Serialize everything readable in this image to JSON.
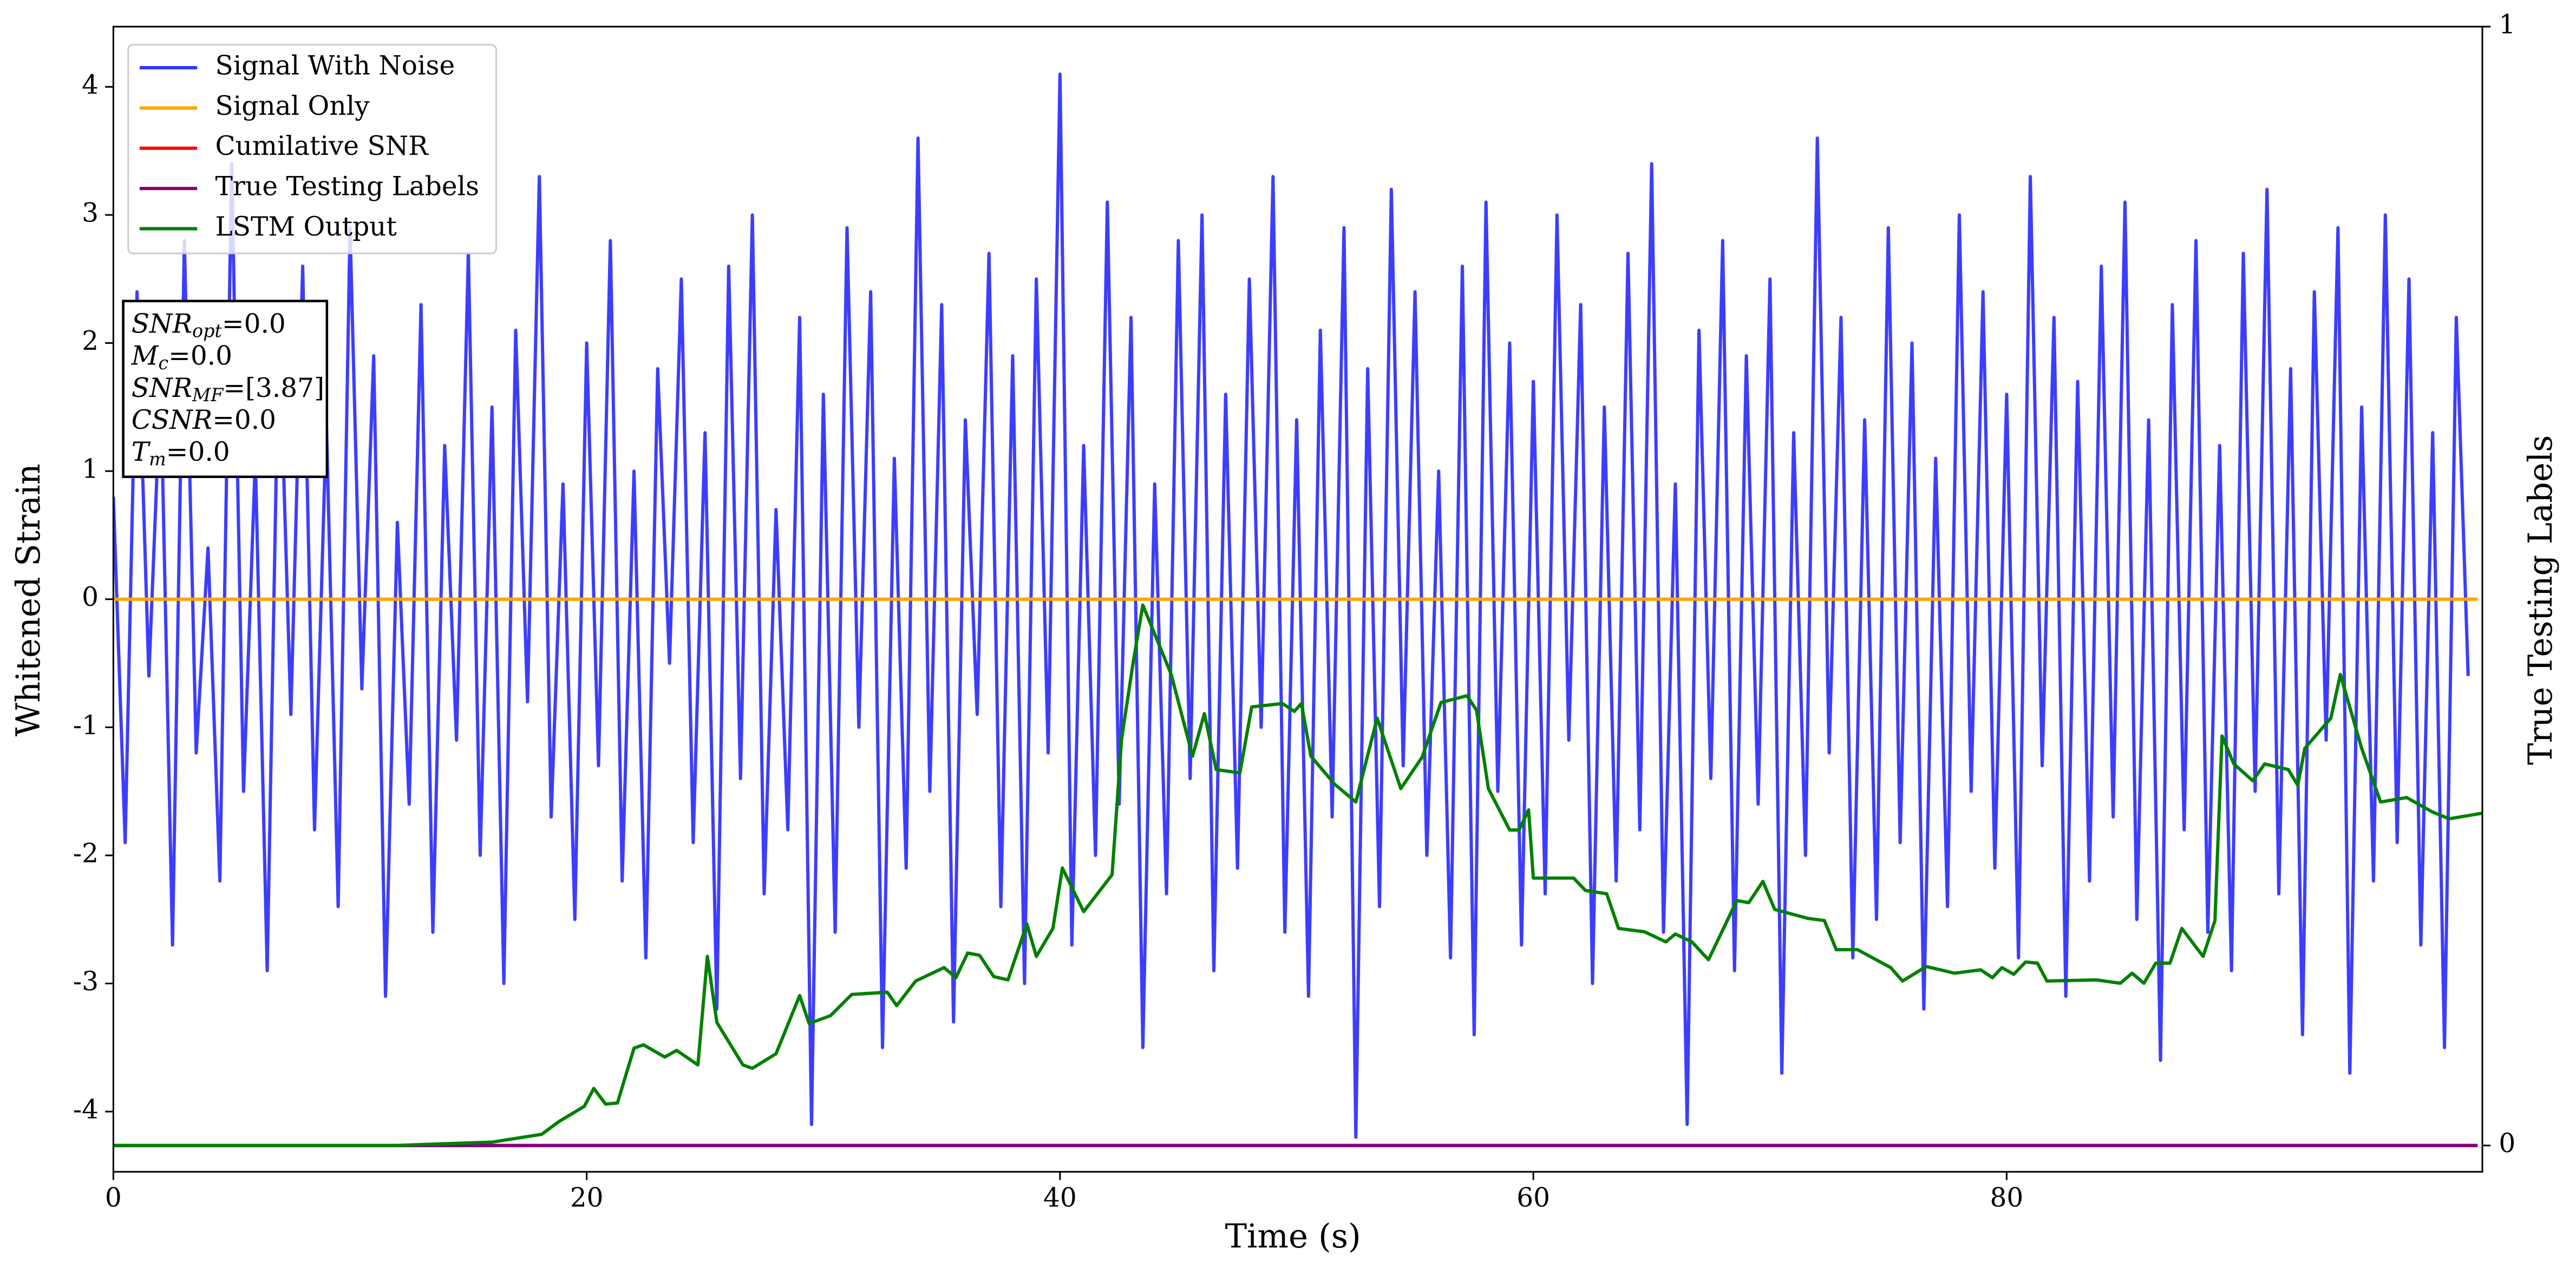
{
  "chart_data": {
    "type": "line",
    "xlabel": "Time (s)",
    "ylabel": "Whitened Strain",
    "y2label": "True Testing Labels",
    "xlim": [
      0,
      100.1
    ],
    "ylim": [
      -4.47,
      4.47
    ],
    "y2lim": [
      -0.0235,
      1.0
    ],
    "xticks": [
      0,
      20,
      40,
      60,
      80
    ],
    "yticks": [
      -4,
      -3,
      -2,
      -1,
      0,
      1,
      2,
      3,
      4
    ],
    "y2ticks": [
      0,
      1
    ],
    "legend": "upper left",
    "annotations": [
      {
        "symbol": "SNR",
        "sub": "opt",
        "text": "=0.0"
      },
      {
        "symbol": "M",
        "sub": "c",
        "text": "=0.0"
      },
      {
        "symbol": "SNR",
        "sub": "MF",
        "text": "=[3.87]"
      },
      {
        "symbol": "CSNR",
        "text": "=0.0"
      },
      {
        "symbol": "T",
        "sub": "m",
        "text": "=0.0"
      }
    ],
    "series": [
      {
        "name": "Signal With Noise",
        "color": "#3333ff",
        "axis": "y",
        "x": [
          0,
          0.5,
          1,
          1.5,
          2,
          2.5,
          3,
          3.5,
          4,
          4.5,
          5,
          5.5,
          6,
          6.5,
          7,
          7.5,
          8,
          8.5,
          9,
          9.5,
          10,
          10.5,
          11,
          11.5,
          12,
          12.5,
          13,
          13.5,
          14,
          14.5,
          15,
          15.5,
          16,
          16.5,
          17,
          17.5,
          18,
          18.5,
          19,
          19.5,
          20,
          20.5,
          21,
          21.5,
          22,
          22.5,
          23,
          23.5,
          24,
          24.5,
          25,
          25.5,
          26,
          26.5,
          27,
          27.5,
          28,
          28.5,
          29,
          29.5,
          30,
          30.5,
          31,
          31.5,
          32,
          32.5,
          33,
          33.5,
          34,
          34.5,
          35,
          35.5,
          36,
          36.5,
          37,
          37.5,
          38,
          38.5,
          39,
          39.5,
          40,
          40.5,
          41,
          41.5,
          42,
          42.5,
          43,
          43.5,
          44,
          44.5,
          45,
          45.5,
          46,
          46.5,
          47,
          47.5,
          48,
          48.5,
          49,
          49.5,
          50,
          50.5,
          51,
          51.5,
          52,
          52.5,
          53,
          53.5,
          54,
          54.5,
          55,
          55.5,
          56,
          56.5,
          57,
          57.5,
          58,
          58.5,
          59,
          59.5,
          60,
          60.5,
          61,
          61.5,
          62,
          62.5,
          63,
          63.5,
          64,
          64.5,
          65,
          65.5,
          66,
          66.5,
          67,
          67.5,
          68,
          68.5,
          69,
          69.5,
          70,
          70.5,
          71,
          71.5,
          72,
          72.5,
          73,
          73.5,
          74,
          74.5,
          75,
          75.5,
          76,
          76.5,
          77,
          77.5,
          78,
          78.5,
          79,
          79.5,
          80,
          80.5,
          81,
          81.5,
          82,
          82.5,
          83,
          83.5,
          84,
          84.5,
          85,
          85.5,
          86,
          86.5,
          87,
          87.5,
          88,
          88.5,
          89,
          89.5,
          90,
          90.5,
          91,
          91.5,
          92,
          92.5,
          93,
          93.5,
          94,
          94.5,
          95,
          95.5,
          96,
          96.5,
          97,
          97.5,
          98,
          98.5,
          99,
          99.5
        ],
        "values": [
          0.8,
          -1.9,
          2.4,
          -0.6,
          1.7,
          -2.7,
          2.8,
          -1.2,
          0.4,
          -2.2,
          3.4,
          -1.5,
          1.1,
          -2.9,
          2.2,
          -0.9,
          2.6,
          -1.8,
          1.4,
          -2.4,
          2.9,
          -0.7,
          1.9,
          -3.1,
          0.6,
          -1.6,
          2.3,
          -2.6,
          1.2,
          -1.1,
          2.7,
          -2.0,
          1.5,
          -3.0,
          2.1,
          -0.8,
          3.3,
          -1.7,
          0.9,
          -2.5,
          2.0,
          -1.3,
          2.8,
          -2.2,
          1.0,
          -2.8,
          1.8,
          -0.5,
          2.5,
          -1.9,
          1.3,
          -3.2,
          2.6,
          -1.4,
          3.0,
          -2.3,
          0.7,
          -1.8,
          2.2,
          -4.1,
          1.6,
          -2.6,
          2.9,
          -1.0,
          2.4,
          -3.5,
          1.1,
          -2.1,
          3.6,
          -1.5,
          2.3,
          -3.3,
          1.4,
          -0.9,
          2.7,
          -2.4,
          1.9,
          -3.0,
          2.5,
          -1.2,
          4.1,
          -2.7,
          1.2,
          -2.0,
          3.1,
          -1.6,
          2.2,
          -3.5,
          0.9,
          -2.3,
          2.8,
          -1.4,
          3.0,
          -2.9,
          1.6,
          -2.1,
          2.5,
          -1.0,
          3.3,
          -2.6,
          1.4,
          -3.1,
          2.1,
          -1.7,
          2.9,
          -4.2,
          1.8,
          -2.4,
          3.2,
          -1.3,
          2.4,
          -2.0,
          1.0,
          -2.8,
          2.6,
          -3.4,
          3.1,
          -1.5,
          2.0,
          -2.7,
          1.7,
          -2.3,
          3.0,
          -1.1,
          2.3,
          -3.0,
          1.5,
          -2.2,
          2.7,
          -1.8,
          3.4,
          -2.6,
          0.9,
          -4.1,
          2.1,
          -1.4,
          2.8,
          -2.9,
          1.9,
          -1.6,
          2.5,
          -3.7,
          1.3,
          -2.0,
          3.6,
          -1.2,
          2.2,
          -2.8,
          1.4,
          -2.5,
          2.9,
          -1.9,
          2.0,
          -3.2,
          1.1,
          -2.4,
          3.0,
          -1.5,
          2.4,
          -2.1,
          1.6,
          -2.8,
          3.3,
          -1.3,
          2.2,
          -3.1,
          1.7,
          -2.2,
          2.6,
          -1.7,
          3.1,
          -2.5,
          1.4,
          -3.6,
          2.3,
          -1.8,
          2.8,
          -2.6,
          1.2,
          -2.9,
          2.7,
          -1.5,
          3.2,
          -2.3,
          1.8,
          -3.4,
          2.4,
          -1.1,
          2.9,
          -3.7,
          1.5,
          -2.2,
          3.0,
          -1.9,
          2.5,
          -2.7,
          1.3,
          -3.5,
          2.2,
          -0.6
        ]
      },
      {
        "name": "Signal Only",
        "color": "#ffa500",
        "axis": "y",
        "x": [
          0,
          99.9
        ],
        "values": [
          0,
          0
        ]
      },
      {
        "name": "Cumilative SNR",
        "color": "#ff0000",
        "axis": "y2",
        "x": [
          0,
          99.9
        ],
        "values": [
          0,
          0
        ]
      },
      {
        "name": "True Testing Labels",
        "color": "#800080",
        "axis": "y2",
        "x": [
          0,
          99.9
        ],
        "values": [
          0,
          0
        ]
      },
      {
        "name": "LSTM Output",
        "color": "#008000",
        "axis": "y2",
        "x": [
          0,
          11.9,
          16.0,
          18.1,
          18.8,
          19.9,
          20.3,
          20.8,
          21.3,
          22.0,
          22.4,
          23.3,
          23.8,
          24.7,
          25.1,
          25.5,
          26.6,
          27.0,
          28.0,
          29.0,
          29.4,
          30.3,
          31.2,
          32.7,
          33.1,
          33.9,
          35.1,
          35.6,
          36.1,
          36.6,
          37.2,
          37.8,
          38.6,
          39.0,
          39.7,
          40.1,
          41.0,
          42.2,
          42.6,
          43.1,
          43.5,
          44.7,
          45.6,
          46.1,
          46.6,
          47.6,
          48.1,
          49.4,
          49.9,
          50.2,
          50.6,
          51.6,
          52.5,
          53.4,
          54.4,
          55.3,
          56.1,
          57.2,
          57.6,
          58.1,
          59.0,
          59.4,
          59.8,
          60.0,
          61.7,
          62.2,
          63.1,
          63.6,
          64.7,
          65.6,
          66.0,
          66.7,
          67.4,
          68.6,
          69.1,
          69.7,
          70.2,
          71.6,
          72.3,
          72.8,
          73.7,
          75.1,
          75.6,
          76.6,
          77.8,
          78.9,
          79.4,
          79.8,
          80.3,
          80.8,
          81.3,
          81.7,
          83.8,
          84.8,
          85.3,
          85.8,
          86.3,
          86.9,
          87.4,
          88.3,
          88.8,
          89.1,
          89.6,
          90.4,
          90.9,
          91.9,
          92.3,
          92.6,
          93.7,
          94.1,
          95.0,
          95.8,
          96.9,
          98.0,
          98.7,
          100.1
        ],
        "values": [
          0,
          0,
          0.003,
          0.01,
          0.021,
          0.035,
          0.051,
          0.037,
          0.038,
          0.087,
          0.09,
          0.079,
          0.085,
          0.072,
          0.169,
          0.11,
          0.072,
          0.069,
          0.082,
          0.134,
          0.109,
          0.116,
          0.135,
          0.137,
          0.125,
          0.147,
          0.159,
          0.15,
          0.172,
          0.17,
          0.151,
          0.148,
          0.198,
          0.169,
          0.194,
          0.248,
          0.209,
          0.242,
          0.363,
          0.433,
          0.483,
          0.421,
          0.348,
          0.386,
          0.336,
          0.333,
          0.392,
          0.395,
          0.388,
          0.395,
          0.348,
          0.323,
          0.307,
          0.382,
          0.319,
          0.347,
          0.396,
          0.402,
          0.389,
          0.319,
          0.282,
          0.282,
          0.3,
          0.239,
          0.239,
          0.228,
          0.225,
          0.194,
          0.191,
          0.182,
          0.189,
          0.182,
          0.166,
          0.219,
          0.217,
          0.236,
          0.211,
          0.203,
          0.201,
          0.175,
          0.175,
          0.159,
          0.147,
          0.16,
          0.154,
          0.157,
          0.15,
          0.159,
          0.153,
          0.164,
          0.163,
          0.147,
          0.148,
          0.145,
          0.154,
          0.145,
          0.163,
          0.163,
          0.194,
          0.169,
          0.201,
          0.366,
          0.341,
          0.326,
          0.341,
          0.336,
          0.322,
          0.355,
          0.382,
          0.421,
          0.355,
          0.307,
          0.311,
          0.298,
          0.292,
          0.297
        ]
      }
    ]
  }
}
